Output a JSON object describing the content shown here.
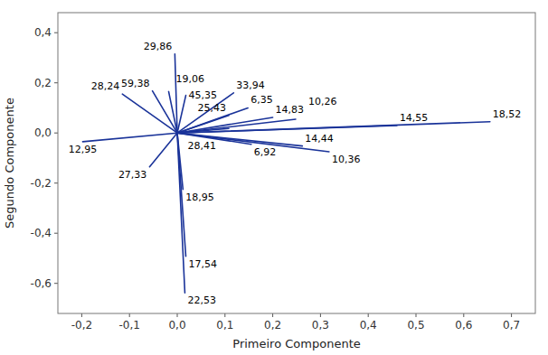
{
  "chart_data": {
    "type": "vector",
    "xlabel": "Primeiro Componente",
    "ylabel": "Segundo Componente",
    "x": [
      -0.005,
      -0.115,
      -0.052,
      -0.018,
      0.018,
      0.118,
      0.148,
      0.108,
      0.2,
      0.248,
      0.108,
      -0.198,
      0.155,
      0.262,
      0.318,
      0.46,
      0.655,
      -0.058,
      0.012,
      0.018,
      0.016
    ],
    "values": [
      0.315,
      0.155,
      0.168,
      0.165,
      0.15,
      0.16,
      0.1,
      0.07,
      0.062,
      0.055,
      0.018,
      -0.035,
      -0.045,
      -0.052,
      -0.075,
      0.03,
      0.045,
      -0.135,
      -0.225,
      -0.492,
      -0.638
    ],
    "labels": [
      "29,86",
      "28,24",
      "59,38",
      "19,06",
      "45,35",
      "33,94",
      "6,35",
      "25,43",
      "14,83",
      "10,26",
      "28,41",
      "12,95",
      "6,92",
      "14,44",
      "10,36",
      "14,55",
      "18,52",
      "27,33",
      "18,95",
      "17,54",
      "22,53"
    ],
    "color": "#1a3399",
    "xlim": [
      -0.25,
      0.75
    ],
    "ylim": [
      -0.72,
      0.48
    ],
    "xticks": [
      {
        "value": -0.2,
        "label": "-0,2"
      },
      {
        "value": -0.1,
        "label": "-0,1"
      },
      {
        "value": 0.0,
        "label": "0,0"
      },
      {
        "value": 0.1,
        "label": "0,1"
      },
      {
        "value": 0.2,
        "label": "0,2"
      },
      {
        "value": 0.3,
        "label": "0,3"
      },
      {
        "value": 0.4,
        "label": "0,4"
      },
      {
        "value": 0.5,
        "label": "0,5"
      },
      {
        "value": 0.6,
        "label": "0,6"
      },
      {
        "value": 0.7,
        "label": "0,7"
      }
    ],
    "yticks": [
      {
        "value": -0.6,
        "label": "-0,6"
      },
      {
        "value": -0.4,
        "label": "-0,4"
      },
      {
        "value": -0.2,
        "label": "-0,2"
      },
      {
        "value": 0.0,
        "label": "0,0"
      },
      {
        "value": 0.2,
        "label": "0,2"
      },
      {
        "value": 0.4,
        "label": "0,4"
      }
    ],
    "grid": false
  }
}
